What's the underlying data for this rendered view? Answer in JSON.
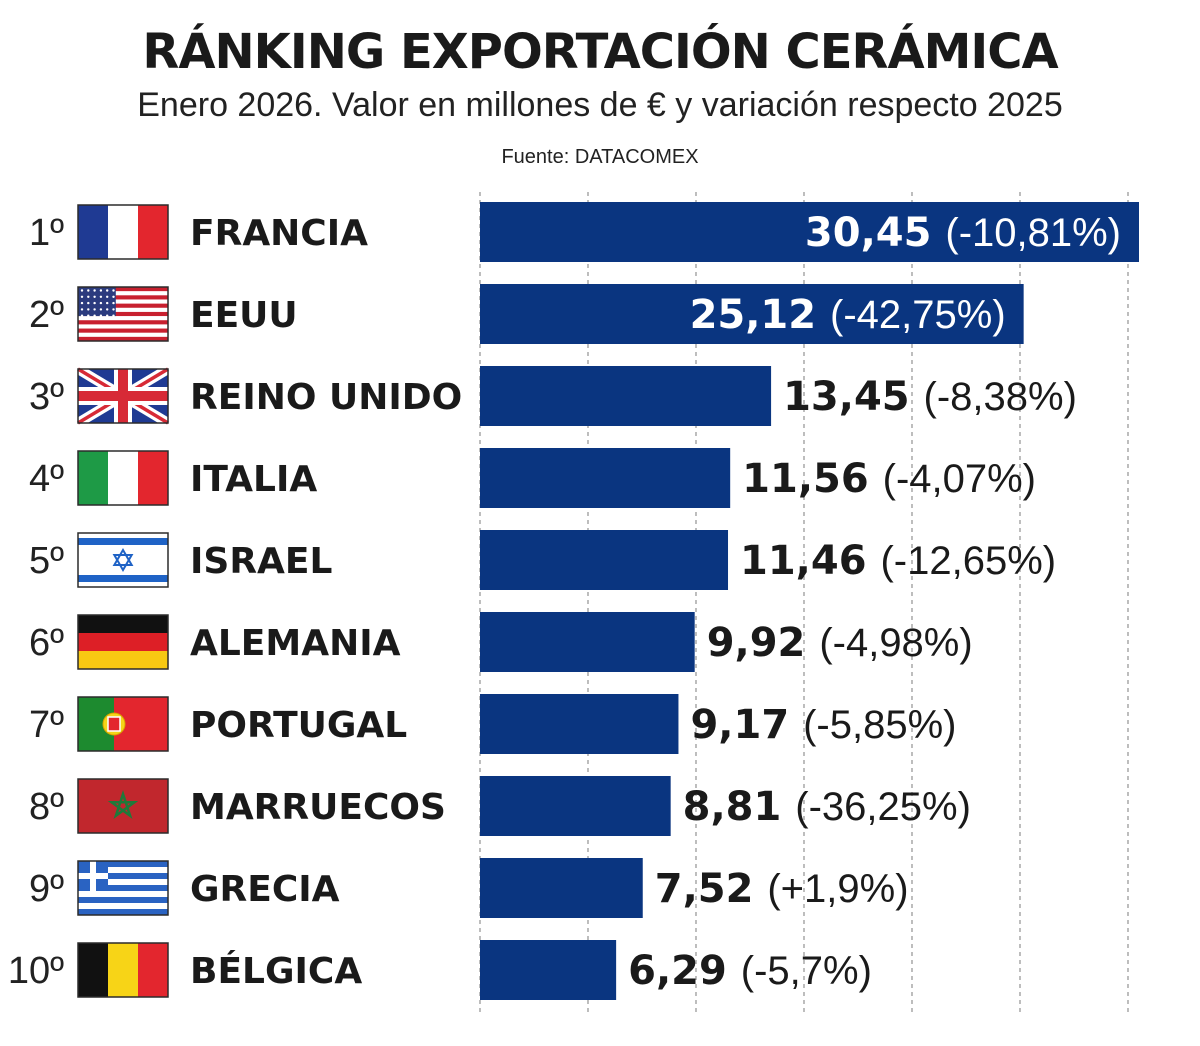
{
  "title": "RÁNKING EXPORTACIÓN CERÁMICA",
  "subtitle": "Enero 2026. Valor en millones de € y variación respecto 2025",
  "source": "Fuente: DATACOMEX",
  "colors": {
    "bar": "#0a3580",
    "text": "#1a1a1a",
    "grid": "#9a9a9a"
  },
  "chart_data": {
    "type": "bar",
    "orientation": "horizontal",
    "xlim": [
      0,
      30.45
    ],
    "grid": "vertical dashed",
    "categories": [
      "FRANCIA",
      "EEUU",
      "REINO UNIDO",
      "ITALIA",
      "ISRAEL",
      "ALEMANIA",
      "PORTUGAL",
      "MARRUECOS",
      "GRECIA",
      "BÉLGICA"
    ],
    "ranks": [
      "1º",
      "2º",
      "3º",
      "4º",
      "5º",
      "6º",
      "7º",
      "8º",
      "9º",
      "10º"
    ],
    "flags": [
      "france-flag",
      "usa-flag",
      "uk-flag",
      "italy-flag",
      "israel-flag",
      "germany-flag",
      "portugal-flag",
      "morocco-flag",
      "greece-flag",
      "belgium-flag"
    ],
    "values": [
      30.45,
      25.12,
      13.45,
      11.56,
      11.46,
      9.92,
      9.17,
      8.81,
      7.52,
      6.29
    ],
    "value_labels": [
      "30,45",
      "25,12",
      "13,45",
      "11,56",
      "11,46",
      "9,92",
      "9,17",
      "8,81",
      "7,52",
      "6,29"
    ],
    "change_labels": [
      "(-10,81%)",
      "(-42,75%)",
      "(-8,38%)",
      "(-4,07%)",
      "(-12,65%)",
      "(-4,98%)",
      "(-5,85%)",
      "(-36,25%)",
      "(+1,9%)",
      "(-5,7%)"
    ]
  }
}
